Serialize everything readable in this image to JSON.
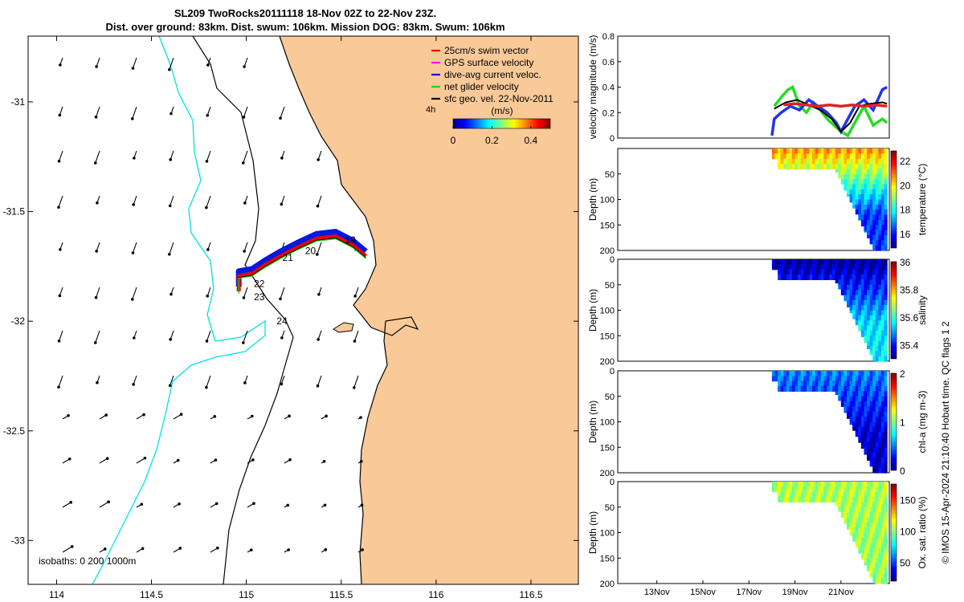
{
  "title_line1": "SL209 TwoRocks20111118 18-Nov 02Z to 22-Nov 23Z.",
  "title_line2": "Dist. over ground: 83km. Dist. swum: 106km. Mission DOG: 83km. Swum: 106km",
  "credit": "© IMOS 15-Apr-2024 21:10:40 Hobart time. QC flags 1  2",
  "colors": {
    "land": "#fac998",
    "coast_contour": "#000000",
    "isobath_1000": "#00e0e8",
    "track_red": "#ee0000",
    "track_blue": "#0018e0"
  },
  "chart_data": [
    {
      "type": "map",
      "x_ticks": [
        "114",
        "114.5",
        "115",
        "115.5",
        "116",
        "116.5"
      ],
      "x_tick_values": [
        114,
        114.5,
        115,
        115.5,
        116,
        116.5
      ],
      "y_ticks": [
        "-31",
        "-31.5",
        "-32",
        "-32.5",
        "-33"
      ],
      "y_tick_values": [
        -31,
        -31.5,
        -32,
        -32.5,
        -33
      ],
      "xlim": [
        113.85,
        116.75
      ],
      "ylim": [
        -33.2,
        -30.7
      ],
      "legend": [
        {
          "label": "25cm/s swim vector",
          "color": "#ee0000"
        },
        {
          "label": "GPS surface velocity",
          "color": "#ff00ff"
        },
        {
          "label": "dive-avg current veloc.",
          "color": "#0000ff"
        },
        {
          "label": "net glider velocity",
          "color": "#00dd00"
        },
        {
          "label": "sfc geo. vel. 22-Nov-2011",
          "color": "#000000"
        }
      ],
      "colorbar": {
        "title": "(m/s)",
        "ticks": [
          "0",
          "0.2",
          "0.4"
        ],
        "tick_values": [
          0,
          0.2,
          0.4
        ],
        "range": [
          0,
          0.5
        ]
      },
      "scale_label": "4h",
      "isobaths_label": "isobaths: 0    200  1000m",
      "track_day_labels": [
        {
          "text": "19",
          "lon": 115.52,
          "lat": -31.63
        },
        {
          "text": "20",
          "lon": 115.31,
          "lat": -31.68
        },
        {
          "text": "21",
          "lon": 115.19,
          "lat": -31.71
        },
        {
          "text": "22",
          "lon": 115.04,
          "lat": -31.83
        },
        {
          "text": "23",
          "lon": 115.04,
          "lat": -31.89
        },
        {
          "text": "24",
          "lon": 115.16,
          "lat": -32.0
        }
      ],
      "track": [
        {
          "lon": 115.63,
          "lat": -31.7
        },
        {
          "lon": 115.56,
          "lat": -31.65
        },
        {
          "lon": 115.47,
          "lat": -31.61
        },
        {
          "lon": 115.37,
          "lat": -31.62
        },
        {
          "lon": 115.27,
          "lat": -31.66
        },
        {
          "lon": 115.18,
          "lat": -31.7
        },
        {
          "lon": 115.1,
          "lat": -31.74
        },
        {
          "lon": 115.03,
          "lat": -31.78
        },
        {
          "lon": 114.96,
          "lat": -31.79
        },
        {
          "lon": 114.96,
          "lat": -31.86
        }
      ]
    },
    {
      "type": "line",
      "ylabel": "velocity magnitude (m/s)",
      "y_ticks": [
        "0",
        "0.2",
        "0.4",
        "0.6",
        "0.8"
      ],
      "y_tick_values": [
        0,
        0.2,
        0.4,
        0.6,
        0.8
      ],
      "ylim": [
        0,
        0.8
      ],
      "x_ticks": [
        "13Nov",
        "15Nov",
        "17Nov",
        "19Nov",
        "21Nov"
      ],
      "x_tick_values": [
        13,
        15,
        17,
        19,
        21
      ],
      "xlim": [
        11.3,
        23.1
      ],
      "series": [
        {
          "name": "net glider velocity",
          "color": "#22dd22",
          "x": [
            18.1,
            18.4,
            18.7,
            18.9,
            19.2,
            19.5,
            19.8,
            20.1,
            20.4,
            20.7,
            21.0,
            21.3,
            21.6,
            22.0,
            22.4,
            22.8,
            23.0
          ],
          "y": [
            0.25,
            0.32,
            0.38,
            0.4,
            0.25,
            0.2,
            0.28,
            0.22,
            0.15,
            0.1,
            0.05,
            0.02,
            0.12,
            0.25,
            0.1,
            0.15,
            0.12
          ]
        },
        {
          "name": "dive-avg current veloc.",
          "color": "#2233ee",
          "x": [
            18.0,
            18.1,
            18.4,
            18.8,
            19.2,
            19.6,
            20.0,
            20.4,
            20.8,
            21.0,
            21.3,
            21.6,
            22.0,
            22.4,
            22.8,
            23.0
          ],
          "y": [
            0.02,
            0.15,
            0.2,
            0.25,
            0.22,
            0.3,
            0.25,
            0.2,
            0.12,
            0.05,
            0.15,
            0.25,
            0.3,
            0.22,
            0.38,
            0.4
          ]
        },
        {
          "name": "sfc geo. vel.",
          "color": "#000000",
          "x": [
            18.1,
            18.6,
            19.1,
            19.6,
            20.1,
            20.6,
            21.0,
            21.4,
            21.8,
            22.3,
            22.8,
            23.0
          ],
          "y": [
            0.23,
            0.28,
            0.3,
            0.26,
            0.22,
            0.15,
            0.05,
            0.12,
            0.25,
            0.27,
            0.28,
            0.27
          ]
        },
        {
          "name": "swim",
          "color": "#dd2222",
          "x": [
            18.5,
            19.0,
            19.5,
            20.0,
            20.5,
            21.0,
            21.5,
            22.0,
            22.5,
            23.0
          ],
          "y": [
            0.26,
            0.27,
            0.26,
            0.25,
            0.26,
            0.25,
            0.26,
            0.25,
            0.26,
            0.25
          ]
        }
      ]
    },
    {
      "type": "heatmap",
      "ylabel": "Depth (m)",
      "colorbar_label": "temperature (°C)",
      "colorbar_ticks": [
        "16",
        "18",
        "20",
        "22"
      ],
      "colorbar_tick_values": [
        16,
        18,
        20,
        22
      ],
      "crange": [
        14.8,
        22.8
      ],
      "y_ticks": [
        "50",
        "100",
        "150",
        "200"
      ],
      "y_tick_values": [
        50,
        100,
        150,
        200
      ],
      "ylim": [
        0,
        200
      ],
      "surface": 20.5,
      "deep": 16.2
    },
    {
      "type": "heatmap",
      "ylabel": "Depth (m)",
      "colorbar_label": "salinity",
      "colorbar_ticks": [
        "35.4",
        "35.6",
        "35.8",
        "36"
      ],
      "colorbar_tick_values": [
        35.4,
        35.6,
        35.8,
        36
      ],
      "crange": [
        35.3,
        36.0
      ],
      "y_ticks": [
        "0",
        "50",
        "100",
        "150",
        "200"
      ],
      "y_tick_values": [
        0,
        50,
        100,
        150,
        200
      ],
      "ylim": [
        0,
        200
      ],
      "surface": 35.32,
      "deep": 35.55
    },
    {
      "type": "heatmap",
      "ylabel": "Depth (m)",
      "colorbar_label": "chl-a (mg m-3)",
      "colorbar_ticks": [
        "0",
        "1",
        "2"
      ],
      "colorbar_tick_values": [
        0,
        1,
        2
      ],
      "crange": [
        0,
        2
      ],
      "y_ticks": [
        "0",
        "50",
        "100",
        "150",
        "200"
      ],
      "y_tick_values": [
        0,
        50,
        100,
        150,
        200
      ],
      "ylim": [
        0,
        200
      ],
      "surface": 0.5,
      "deep": 0.15
    },
    {
      "type": "heatmap",
      "ylabel": "Depth (m)",
      "colorbar_label": "Ox. sat. ratio (%)",
      "colorbar_ticks": [
        "50",
        "100",
        "150"
      ],
      "colorbar_tick_values": [
        50,
        100,
        150
      ],
      "crange": [
        20,
        175
      ],
      "y_ticks": [
        "0",
        "50",
        "100",
        "150",
        "200"
      ],
      "y_tick_values": [
        0,
        50,
        100,
        150,
        200
      ],
      "ylim": [
        0,
        200
      ],
      "surface": 105,
      "deep": 102,
      "x_ticks": [
        "13Nov",
        "15Nov",
        "17Nov",
        "19Nov",
        "21Nov"
      ],
      "x_tick_values": [
        13,
        15,
        17,
        19,
        21
      ],
      "xlim": [
        11.3,
        23.1
      ]
    }
  ]
}
